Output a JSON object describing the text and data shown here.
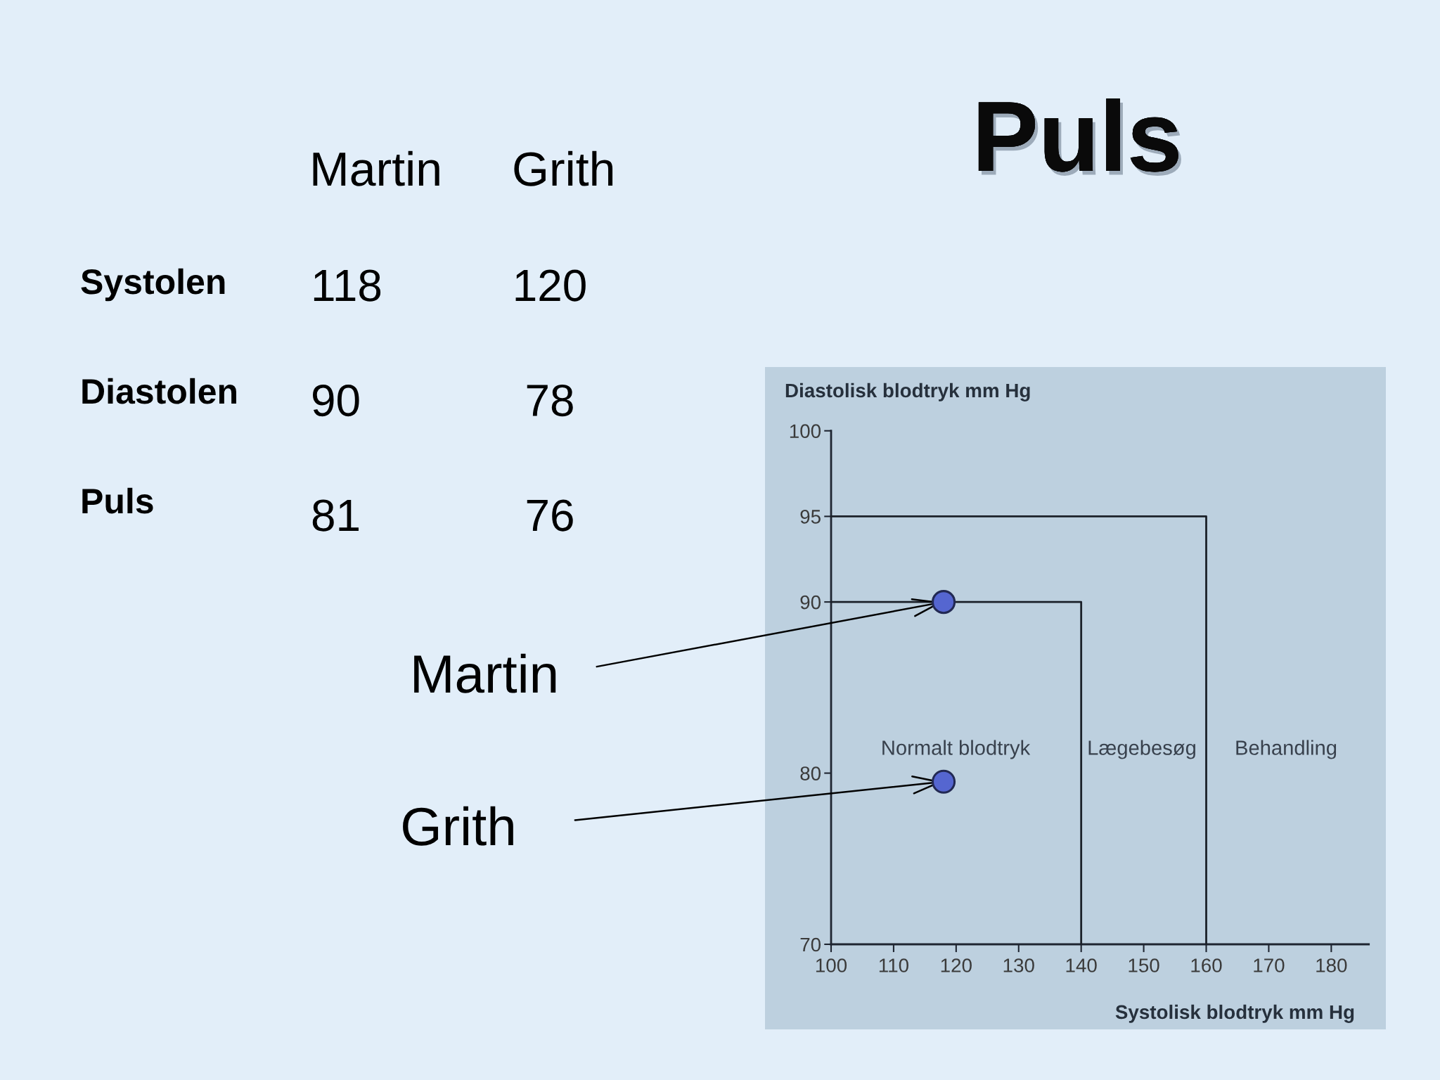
{
  "chart_data": [
    {
      "type": "other",
      "title": "Puls",
      "categories": [
        "Systolen",
        "Diastolen",
        "Puls"
      ],
      "series": [
        {
          "name": "Martin",
          "values": [
            118,
            90,
            81
          ]
        },
        {
          "name": "Grith",
          "values": [
            120,
            78,
            76
          ]
        }
      ],
      "data_labels": true
    },
    {
      "type": "scatter",
      "xlabel": "Systolisk blodtryk mm Hg",
      "ylabel": "Diastolisk blodtryk mm Hg",
      "xlim": [
        100,
        186
      ],
      "ylim": [
        70,
        100
      ],
      "xticks": [
        100,
        110,
        120,
        130,
        140,
        150,
        160,
        170,
        180
      ],
      "yticks": [
        70,
        80,
        90,
        95,
        100
      ],
      "series": [
        {
          "type": "line",
          "x": [
            100,
            140,
            140
          ],
          "values": [
            90,
            90,
            70
          ],
          "color": "#1b2029"
        },
        {
          "type": "line",
          "x": [
            100,
            160,
            160
          ],
          "values": [
            95,
            95,
            70
          ],
          "color": "#1b2029"
        },
        {
          "type": "scatter",
          "x": [
            118,
            118
          ],
          "values": [
            90,
            79.5
          ],
          "color": "#5566d0",
          "marker": "circle"
        }
      ],
      "annotations": [
        "Normalt blodtryk",
        "Lægebesøg",
        "Behandling",
        {
          "text": "Martin",
          "x": 118,
          "y": 90
        },
        {
          "text": "Grith",
          "x": 118,
          "y": 79.5
        }
      ]
    }
  ]
}
